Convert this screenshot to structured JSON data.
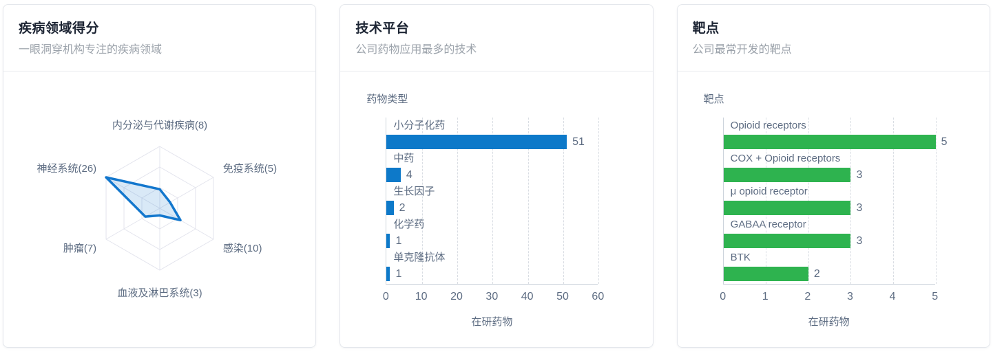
{
  "cards": {
    "disease": {
      "title": "疾病领域得分",
      "subtitle": "一眼洞穿机构专注的疾病领域"
    },
    "tech": {
      "title": "技术平台",
      "subtitle": "公司药物应用最多的技术"
    },
    "targets": {
      "title": "靶点",
      "subtitle": "公司最常开发的靶点"
    }
  },
  "colors": {
    "bar_blue": "#0d79c9",
    "bar_green": "#2eb34f",
    "radar_line": "#1377cd",
    "radar_fill": "rgba(19,119,205,0.16)",
    "grid_line": "#e3e4ed",
    "axis_line": "#ccd3db",
    "chart_text": "#5d6c82"
  },
  "chart_data": [
    {
      "id": "disease_radar",
      "type": "radar",
      "title": "疾病领域得分",
      "categories": [
        "内分泌与代谢疾病",
        "免疫系统",
        "感染",
        "血液及淋巴系统",
        "肿瘤",
        "神经系统"
      ],
      "values": [
        8,
        5,
        10,
        3,
        7,
        26
      ],
      "max": 26,
      "rings": 3,
      "labels_as_shown": [
        "内分泌与代谢疾病(8)",
        "免疫系统(5)",
        "感染(10)",
        "血液及淋巴系统(3)",
        "肿瘤(7)",
        "神经系统(26)"
      ],
      "line_color": "#1377cd",
      "fill_color": "rgba(19,119,205,0.16)"
    },
    {
      "id": "tech_bar",
      "type": "bar",
      "orientation": "horizontal",
      "axis_title": "药物类型",
      "categories": [
        "小分子化药",
        "中药",
        "生长因子",
        "化学药",
        "单克隆抗体"
      ],
      "values": [
        51,
        4,
        2,
        1,
        1
      ],
      "xlabel": "在研药物",
      "xlim": [
        0,
        60
      ],
      "xticks": [
        0,
        10,
        20,
        30,
        40,
        50,
        60
      ],
      "bar_color": "#0d79c9",
      "grid": true
    },
    {
      "id": "target_bar",
      "type": "bar",
      "orientation": "horizontal",
      "axis_title": "靶点",
      "categories": [
        "Opioid receptors",
        "COX + Opioid receptors",
        "μ opioid receptor",
        "GABAA receptor",
        "BTK"
      ],
      "values": [
        5,
        3,
        3,
        3,
        2
      ],
      "xlabel": "在研药物",
      "xlim": [
        0,
        5
      ],
      "xticks": [
        0,
        1,
        2,
        3,
        4,
        5
      ],
      "bar_color": "#2eb34f",
      "grid": true
    }
  ]
}
